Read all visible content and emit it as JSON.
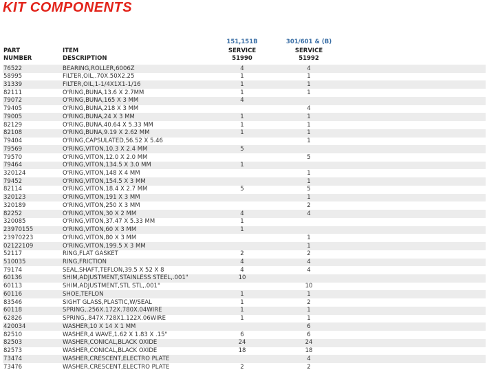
{
  "header": {
    "title": "KIT COMPONENTS"
  },
  "table": {
    "groups": [
      "151,151B",
      "301/601 & (B)"
    ],
    "columns": [
      [
        "PART",
        "NUMBER"
      ],
      [
        "ITEM",
        "DESCRIPTION"
      ],
      [
        "SERVICE",
        "51990"
      ],
      [
        "SERVICE",
        "51992"
      ]
    ],
    "rows": [
      [
        "76522",
        "BEARING,ROLLER,6006Z",
        "4",
        "4"
      ],
      [
        "58995",
        "FILTER,OIL,.70X.50X2.25",
        "1",
        "1"
      ],
      [
        "31339",
        "FILTER,OIL,1-1/4X1X1-1/16",
        "1",
        "1"
      ],
      [
        "82111",
        "O'RING,BUNA,13.6 X 2.7MM",
        "1",
        "1"
      ],
      [
        "79072",
        "O'RING,BUNA,165 X 3 MM",
        "4",
        null
      ],
      [
        "79405",
        "O'RING,BUNA,218 X 3 MM",
        null,
        "4"
      ],
      [
        "79005",
        "O'RING,BUNA,24 X 3 MM",
        "1",
        "1"
      ],
      [
        "82129",
        "O'RING,BUNA,40.64 X 5.33 MM",
        "1",
        "1"
      ],
      [
        "82108",
        "O'RING,BUNA,9.19 X 2.62 MM",
        "1",
        "1"
      ],
      [
        "79404",
        "O'RING,CAPSULATED,56.52 X 5.46",
        null,
        "1"
      ],
      [
        "79569",
        "O'RING,VITON,10.3 X 2.4 MM",
        "5",
        null
      ],
      [
        "79570",
        "O'RING,VITON,12.0 X 2.0 MM",
        null,
        "5"
      ],
      [
        "79464",
        "O'RING,VITON,134.5 X 3.0 MM",
        "1",
        null
      ],
      [
        "320124",
        "O'RING,VITON,148 X 4 MM",
        null,
        "1"
      ],
      [
        "79452",
        "O'RING,VITON,154.5 X 3 MM",
        null,
        "1"
      ],
      [
        "82114",
        "O'RING,VITON,18.4 X 2.7 MM",
        "5",
        "5"
      ],
      [
        "320123",
        "O'RING,VITON,191 X 3 MM",
        null,
        "1"
      ],
      [
        "320189",
        "O'RING,VITON,250 X 3 MM",
        null,
        "2"
      ],
      [
        "82252",
        "O'RING,VITON,30 X 2 MM",
        "4",
        "4"
      ],
      [
        "320085",
        "O'RING,VITON,37.47 X 5.33 MM",
        "1",
        null
      ],
      [
        "23970155",
        "O'RING,VITON,60 X 3 MM",
        "1",
        null
      ],
      [
        "23970223",
        "O'RING,VITON,80 X 3 MM",
        null,
        "1"
      ],
      [
        "02122109",
        "O'RING,VITON,199.5 X 3 MM",
        null,
        "1"
      ],
      [
        "52117",
        "RING,FLAT GASKET",
        "2",
        "2"
      ],
      [
        "510035",
        "RING,FRICTION",
        "4",
        "4"
      ],
      [
        "79174",
        "SEAL,SHAFT,TEFLON,39.5 X 52 X 8",
        "4",
        "4"
      ],
      [
        "60136",
        "SHIM,ADJUSTMENT,STAINLESS STEEL,.001\"",
        "10",
        null
      ],
      [
        "60113",
        "SHIM,ADJUSTMENT,STL STL,.001\"",
        null,
        "10"
      ],
      [
        "60116",
        "SHOE,TEFLON",
        "1",
        "1"
      ],
      [
        "83546",
        "SIGHT GLASS,PLASTIC,W/SEAL",
        "1",
        "2"
      ],
      [
        "60118",
        "SPRING,.256X.172X.780X.04WIRE",
        "1",
        "1"
      ],
      [
        "62826",
        "SPRING,.847X.728X1.122X.06WIRE",
        "1",
        "1"
      ],
      [
        "420034",
        "WASHER,10 X 14 X 1 MM",
        null,
        "6"
      ],
      [
        "82510",
        "WASHER,4 WAVE,1.62 X 1.83 X .15\"",
        "6",
        "6"
      ],
      [
        "82503",
        "WASHER,CONICAL,BLACK OXIDE",
        "24",
        "24"
      ],
      [
        "82573",
        "WASHER,CONICAL,BLACK OXIDE",
        "18",
        "18"
      ],
      [
        "73474",
        "WASHER,CRESCENT,ELECTRO PLATE",
        null,
        "4"
      ],
      [
        "73476",
        "WASHER,CRESCENT,ELECTRO PLATE",
        "2",
        "2"
      ]
    ]
  }
}
